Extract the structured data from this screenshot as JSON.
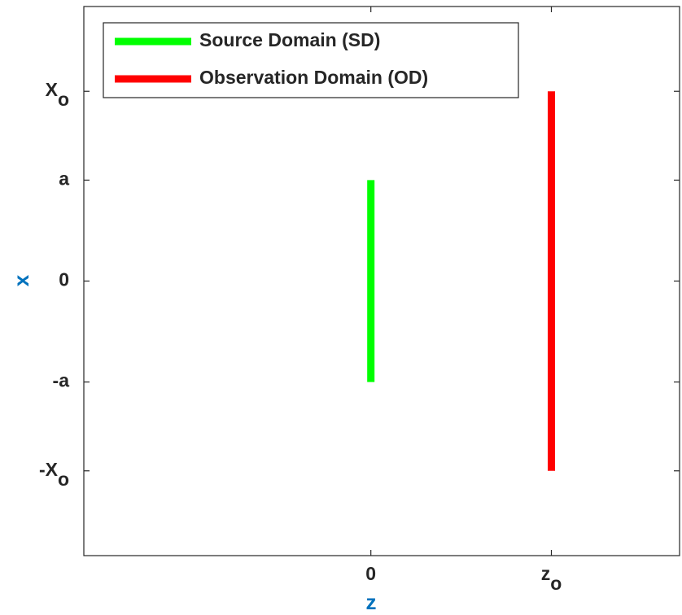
{
  "chart_data": {
    "type": "line",
    "xlabel": "z",
    "ylabel": "x",
    "xlim": [
      -1.59,
      1.71
    ],
    "ylim": [
      -2.72,
      2.72
    ],
    "xticks": [
      {
        "value": 0,
        "label": "0"
      },
      {
        "value": 1,
        "label": "z",
        "sub": "o"
      }
    ],
    "yticks": [
      {
        "value": -1.88,
        "label": "-X",
        "sub": "o"
      },
      {
        "value": -1,
        "label": "-a"
      },
      {
        "value": 0,
        "label": "0"
      },
      {
        "value": 1,
        "label": "a"
      },
      {
        "value": 1.88,
        "label": "X",
        "sub": "o"
      }
    ],
    "legend": "upper left",
    "series": [
      {
        "name": "Source Domain (SD)",
        "color": "#00ff00",
        "x": [
          0,
          0
        ],
        "values": [
          -1,
          1
        ]
      },
      {
        "name": "Observation Domain (OD)",
        "color": "#ff0000",
        "x": [
          1,
          1
        ],
        "values": [
          -1.88,
          1.88
        ]
      }
    ]
  }
}
